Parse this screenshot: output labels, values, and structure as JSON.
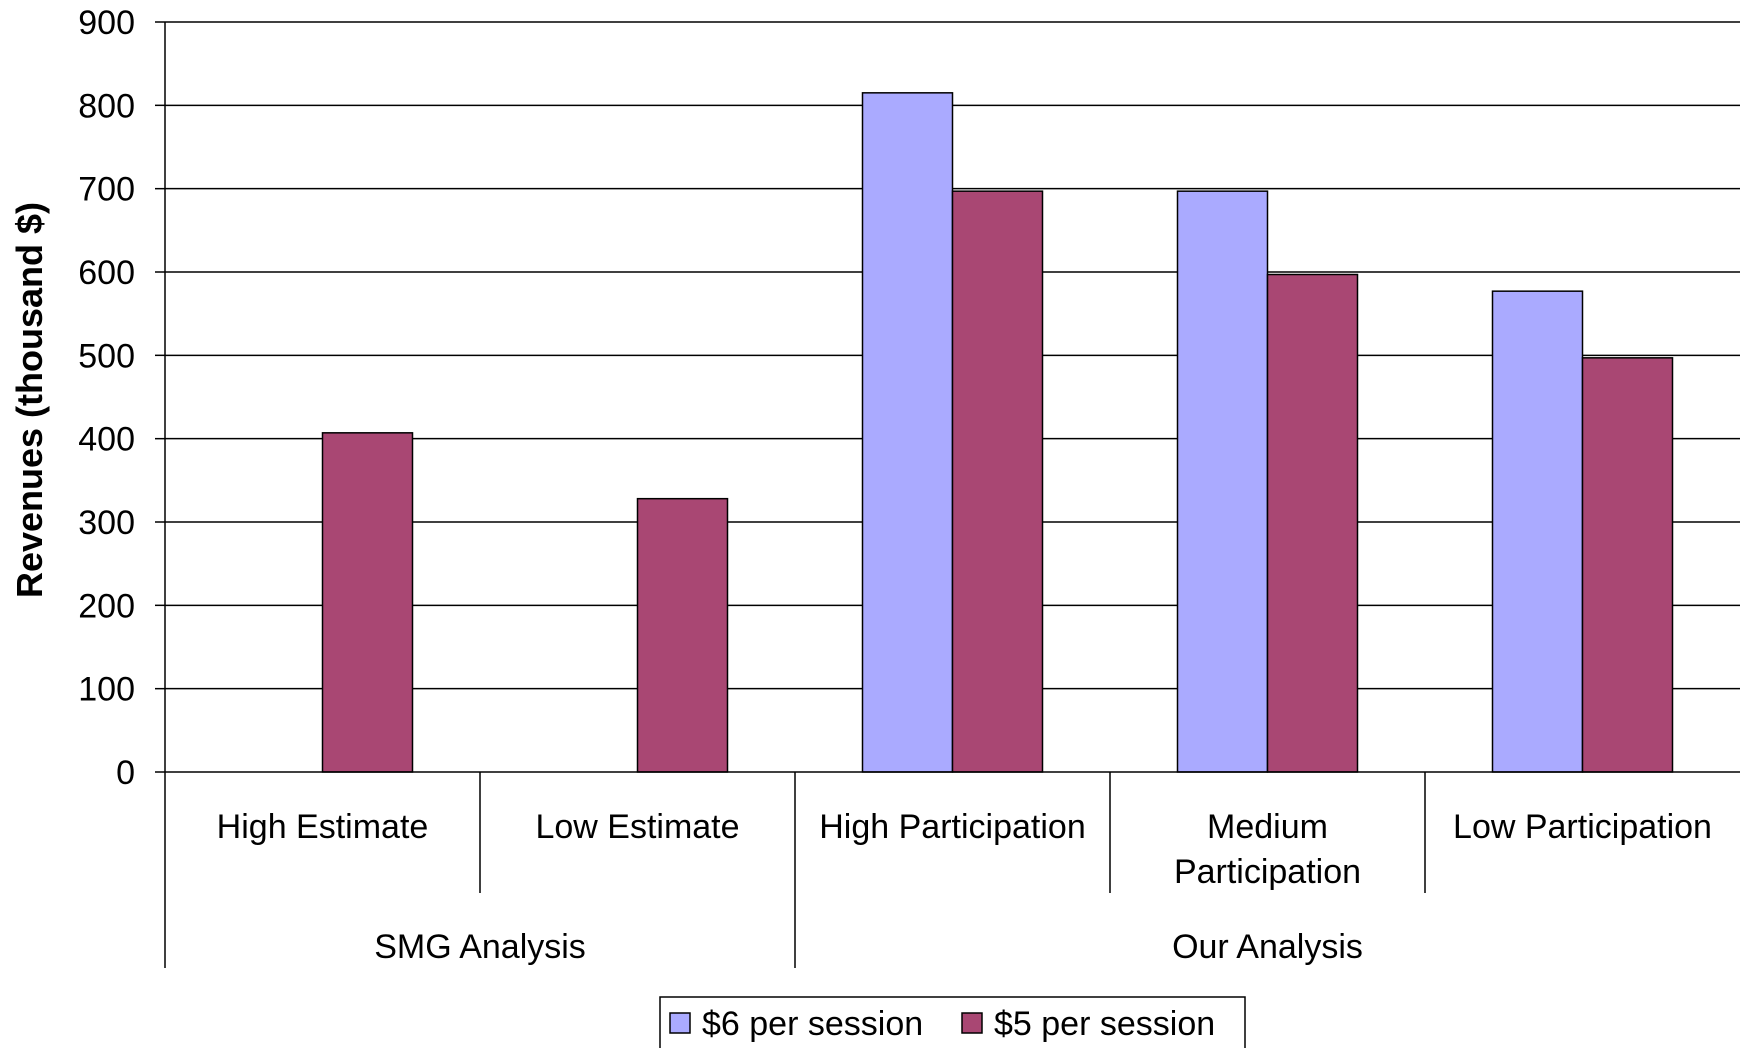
{
  "chart_data": {
    "type": "bar",
    "ylabel": "Revenues  (thousand $)",
    "ylim": [
      0,
      900
    ],
    "ytick_step": 100,
    "grid": true,
    "legend_position": "bottom-center",
    "groups": [
      {
        "label": "SMG Analysis",
        "categories": [
          "High Estimate",
          "Low Estimate"
        ]
      },
      {
        "label": "Our Analysis",
        "categories": [
          "High Participation",
          "Medium Participation",
          "Low Participation"
        ]
      }
    ],
    "categories": [
      [
        "High Estimate"
      ],
      [
        "Low Estimate"
      ],
      [
        "High Participation"
      ],
      [
        "Medium",
        "Participation"
      ],
      [
        "Low Participation"
      ]
    ],
    "series": [
      {
        "name": "$6 per session",
        "color": "#aaaaff",
        "values": [
          null,
          null,
          815,
          697,
          577
        ]
      },
      {
        "name": "$5 per session",
        "color": "#a94773",
        "values": [
          407,
          328,
          697,
          597,
          497
        ]
      }
    ]
  }
}
